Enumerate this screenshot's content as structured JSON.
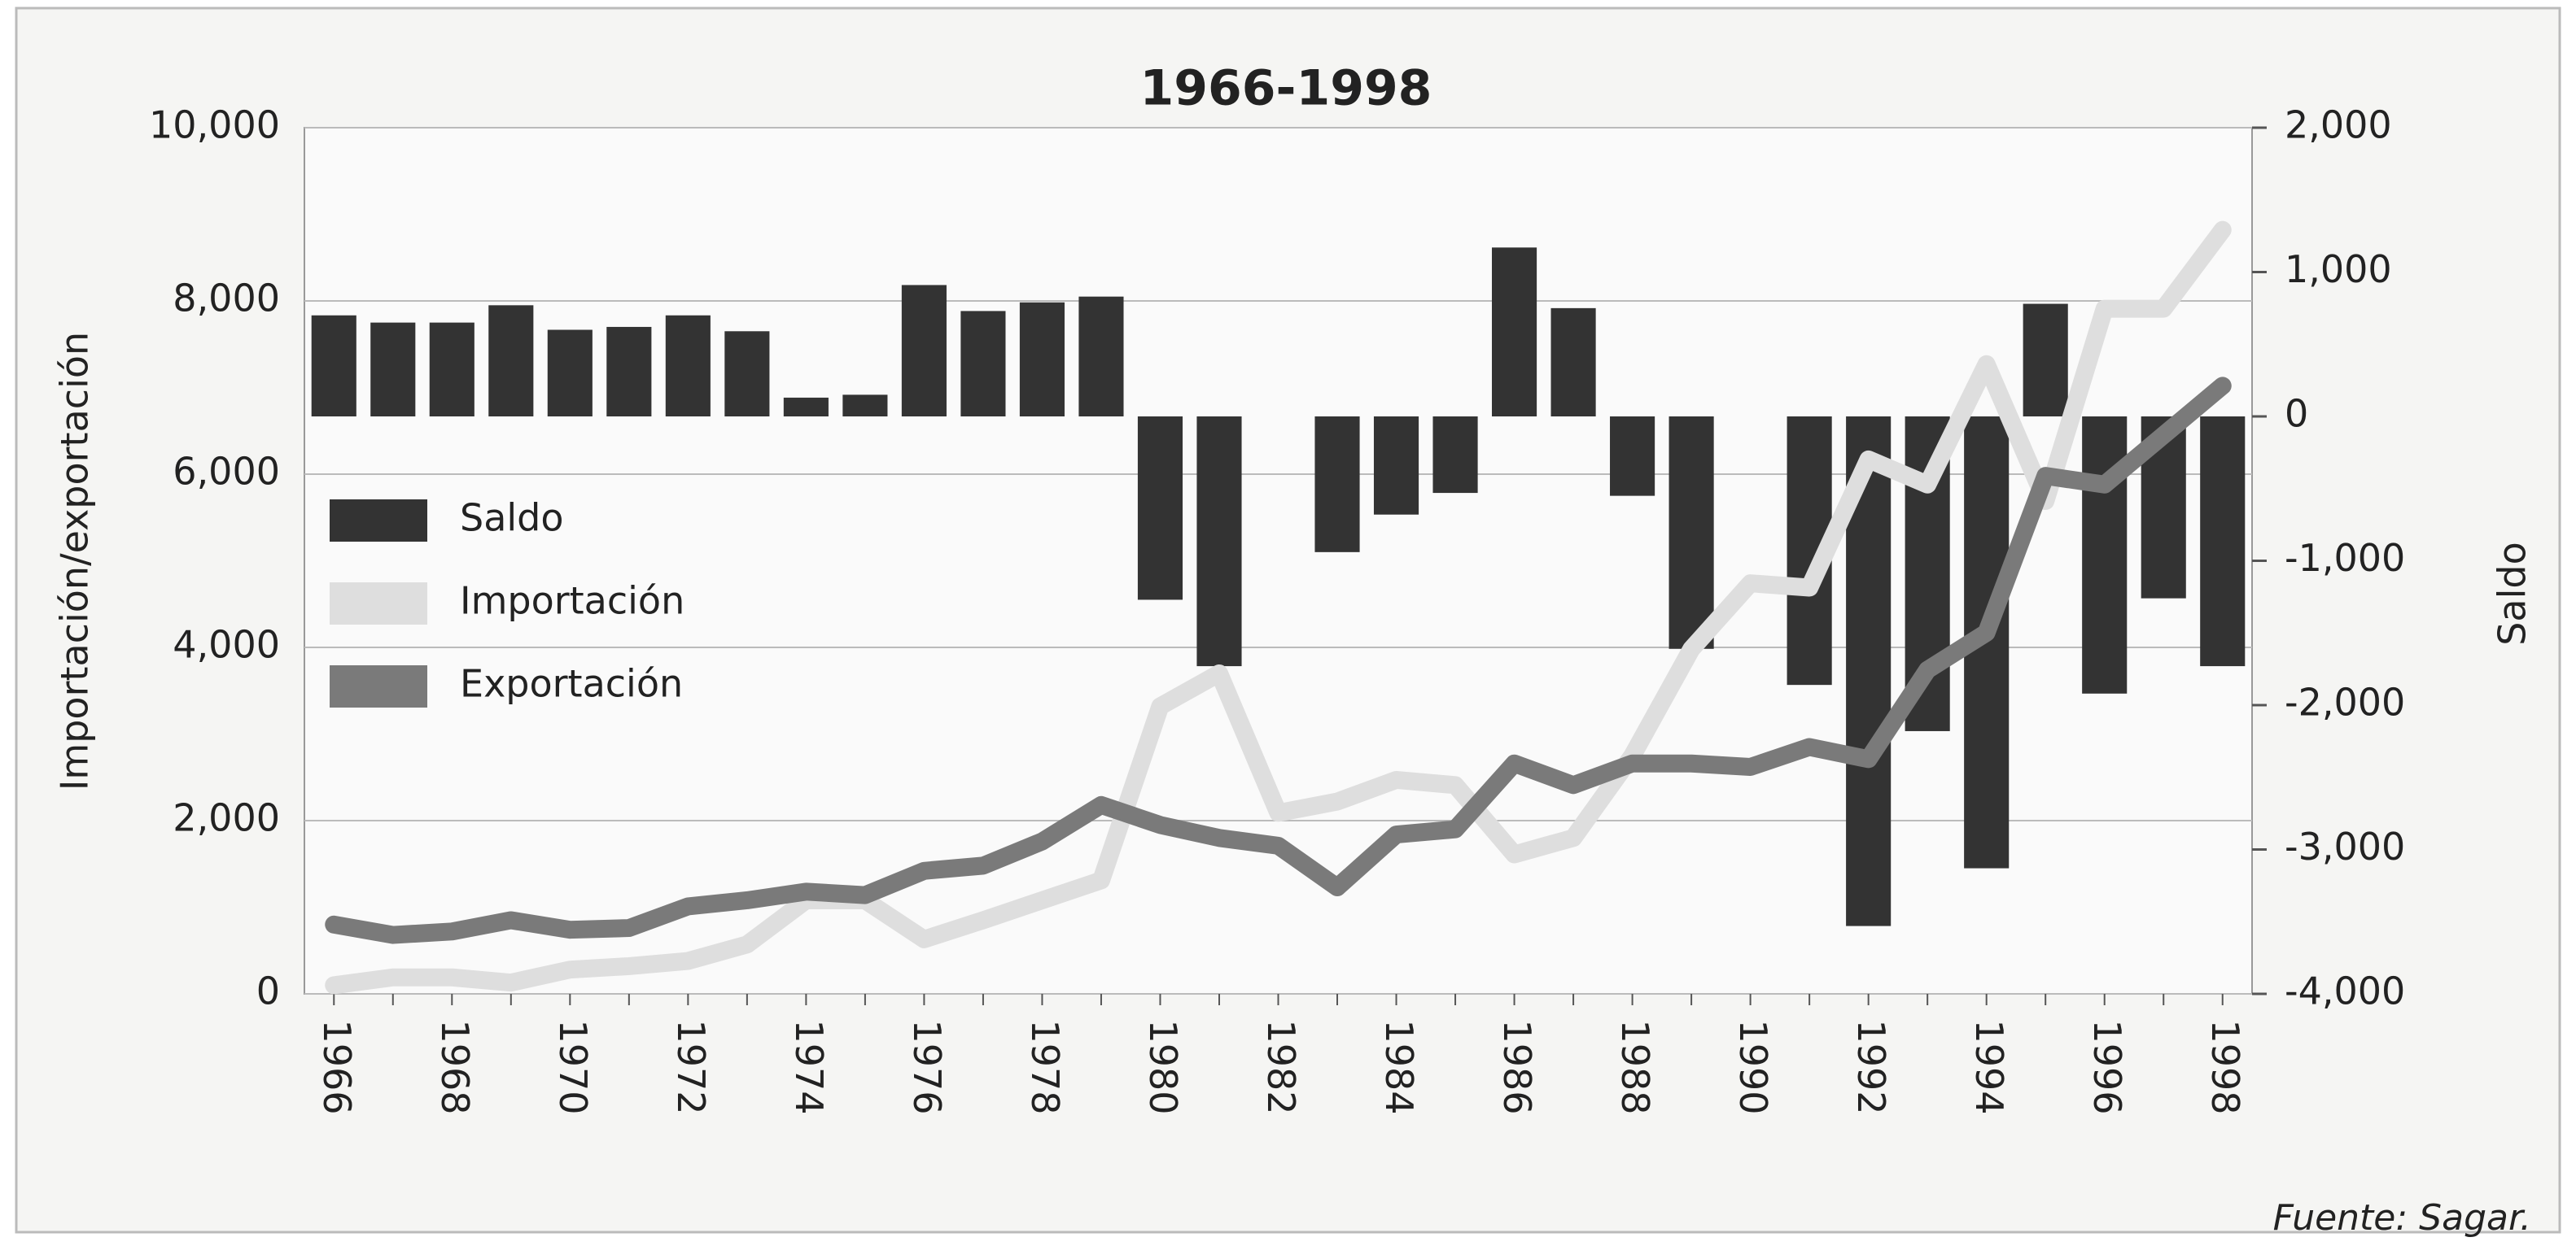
{
  "chart_data": {
    "type": "combo",
    "title": "1966-1998",
    "y_label": "Importación/exportación",
    "y2_label": "Saldo",
    "source": "Fuente: Sagar.",
    "categories": [
      "1966",
      null,
      "1968",
      null,
      "1970",
      null,
      "1972",
      null,
      "1974",
      null,
      "1976",
      null,
      "1978",
      null,
      "1980",
      null,
      "1982",
      null,
      "1984",
      null,
      "1986",
      null,
      "1988",
      null,
      "1990",
      null,
      "1992",
      null,
      "1994",
      null,
      "1996",
      null,
      "1998"
    ],
    "ylim": [
      0,
      10000
    ],
    "yticks": [
      0,
      {
        "value": 2000,
        "label": "2,000"
      },
      {
        "value": 4000,
        "label": "4,000"
      },
      {
        "value": 6000,
        "label": "6,000"
      },
      {
        "value": 8000,
        "label": "8,000"
      },
      {
        "value": 10000,
        "label": "10,000"
      }
    ],
    "y2lim": [
      -4000,
      2000
    ],
    "y2ticks": [
      {
        "value": -4000,
        "label": "-4,000"
      },
      {
        "value": -3000,
        "label": "-3,000"
      },
      {
        "value": -2000,
        "label": "-2,000"
      },
      {
        "value": -1000,
        "label": "-1,000"
      },
      0,
      {
        "value": 1000,
        "label": "1,000"
      },
      {
        "value": 2000,
        "label": "2,000"
      }
    ],
    "grid": true,
    "legend": "left",
    "series": [
      {
        "name": "Saldo",
        "type": "bar",
        "axis": "y2",
        "color": "#333333",
        "values": [
          700,
          650,
          650,
          770,
          600,
          620,
          700,
          590,
          130,
          150,
          910,
          730,
          790,
          830,
          -1270,
          -1730,
          0,
          -940,
          -680,
          -530,
          1170,
          750,
          -550,
          -1610,
          0,
          -1860,
          -3530,
          -2180,
          -3130,
          780,
          -1920,
          -1260,
          -1730
        ]
      },
      {
        "name": "Importación",
        "type": "line",
        "color": "#dedede",
        "values": [
          100,
          190,
          190,
          130,
          280,
          320,
          380,
          570,
          1080,
          1080,
          630,
          850,
          1080,
          1310,
          3320,
          3700,
          2090,
          2220,
          2470,
          2410,
          1610,
          1800,
          2750,
          3980,
          4740,
          4690,
          6170,
          5880,
          7270,
          5690,
          7910,
          7910,
          8820
        ]
      },
      {
        "name": "Exportación",
        "type": "line",
        "color": "#7a7a7a",
        "values": [
          800,
          680,
          720,
          850,
          740,
          760,
          1010,
          1080,
          1180,
          1140,
          1420,
          1480,
          1760,
          2180,
          1950,
          1800,
          1710,
          1230,
          1840,
          1900,
          2660,
          2410,
          2660,
          2660,
          2620,
          2850,
          2710,
          3740,
          4170,
          5980,
          5880,
          6450,
          7020
        ]
      }
    ]
  }
}
